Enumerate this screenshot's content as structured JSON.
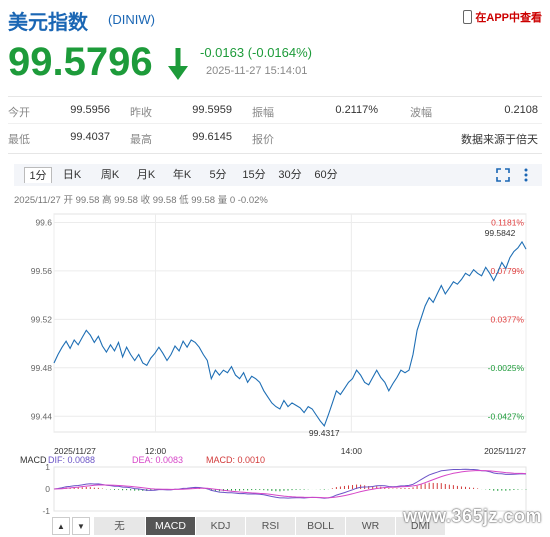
{
  "header": {
    "title": "美元指数",
    "code": "(DINIW)",
    "app_link": "在APP中查看"
  },
  "quote": {
    "price": "99.5796",
    "change": "-0.0163 (-0.0164%)",
    "timestamp": "2025-11-27 15:14:01",
    "color_down": "#1d9b3a",
    "fields": {
      "open_label": "今开",
      "open": "99.5956",
      "prev_close_label": "昨收",
      "prev_close": "99.5959",
      "amplitude_label": "振幅",
      "amplitude": "0.2117%",
      "range_label": "波幅",
      "range": "0.2108",
      "low_label": "最低",
      "low": "99.4037",
      "high_label": "最高",
      "high": "99.6145",
      "quote_label": "报价",
      "source": "数据来源于倍天"
    }
  },
  "chart_tabs": {
    "items": [
      "1分",
      "日K",
      "周K",
      "月K",
      "年K",
      "5分",
      "15分",
      "30分",
      "60分"
    ],
    "active": "1分"
  },
  "chart_info": "2025/11/27 开 99.58 高 99.58 收 99.58 低 99.58 量 0 -0.02%",
  "chart_data": {
    "type": "line",
    "title": "",
    "x_start": "2025/11/27",
    "x_end": "2025/11/27",
    "x_ticks": [
      "2025/11/27",
      "12:00",
      "14:00",
      "2025/11/27"
    ],
    "y_ticks": [
      "99.6",
      "99.56",
      "99.52",
      "99.48",
      "99.44"
    ],
    "y_right_ticks": [
      "0.1181%",
      "0.0779%",
      "0.0377%",
      "-0.0025%",
      "-0.0427%"
    ],
    "ylim": [
      99.427,
      99.607
    ],
    "line_color": "#1f6fb5",
    "max_label": "99.5842",
    "min_label": "99.4317",
    "values": [
      99.484,
      99.491,
      99.497,
      99.502,
      99.496,
      99.503,
      99.499,
      99.505,
      99.511,
      99.507,
      99.501,
      99.506,
      99.498,
      99.493,
      99.499,
      99.494,
      99.501,
      99.489,
      99.497,
      99.491,
      99.486,
      99.491,
      99.484,
      99.482,
      99.488,
      99.492,
      99.497,
      99.492,
      99.486,
      99.491,
      99.498,
      99.494,
      99.502,
      99.497,
      99.503,
      99.501,
      99.497,
      99.491,
      99.486,
      99.471,
      99.478,
      99.474,
      99.478,
      99.476,
      99.481,
      99.474,
      99.471,
      99.476,
      99.468,
      99.473,
      99.471,
      99.468,
      99.461,
      99.456,
      99.451,
      99.448,
      99.446,
      99.453,
      99.448,
      99.451,
      99.449,
      99.447,
      99.443,
      99.448,
      99.446,
      99.441,
      99.436,
      99.432,
      99.441,
      99.451,
      99.461,
      99.458,
      99.463,
      99.468,
      99.471,
      99.478,
      99.474,
      99.468,
      99.466,
      99.472,
      99.478,
      99.472,
      99.468,
      99.461,
      99.467,
      99.472,
      99.478,
      99.476,
      99.478,
      99.491,
      99.511,
      99.521,
      99.531,
      99.538,
      99.534,
      99.541,
      99.548,
      99.541,
      99.546,
      99.551,
      99.549,
      99.553,
      99.558,
      99.556,
      99.561,
      99.558,
      99.556,
      99.563,
      99.558,
      99.552,
      99.559,
      99.567,
      99.562,
      99.571,
      99.576,
      99.579,
      99.584,
      99.578
    ]
  },
  "macd": {
    "label": "MACD",
    "dif": "DIF: 0.0088",
    "dea": "DEA: 0.0083",
    "macd": "MACD: 0.0010",
    "dif_color": "#6b54c7",
    "dea_color": "#d646c8",
    "macd_color": "#d23a3a",
    "y_ticks": [
      "1",
      "0",
      "-1"
    ]
  },
  "bottom_tabs": {
    "items": [
      "无",
      "MACD",
      "KDJ",
      "RSI",
      "BOLL",
      "WR",
      "DMI"
    ],
    "active": "MACD",
    "prev": "▲",
    "next": "▼"
  },
  "watermark": "www.365jz.com"
}
